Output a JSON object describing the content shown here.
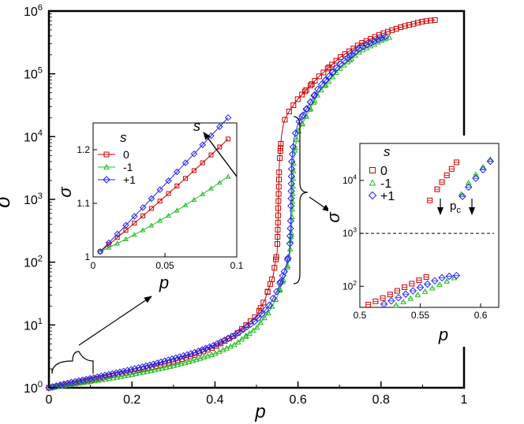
{
  "colors": {
    "s0": "#cc0000",
    "sm1": "#22bb22",
    "sp1": "#2222ee",
    "axis": "#000000"
  },
  "chart_data": [
    {
      "id": "main",
      "type": "scatter",
      "xlabel": "p",
      "ylabel": "σ",
      "yscale": "log",
      "xlim": [
        0,
        1
      ],
      "ylim": [
        1,
        1000000
      ],
      "xticks": [
        {
          "value": 0,
          "label": "0"
        },
        {
          "value": 0.2,
          "label": "0.2"
        },
        {
          "value": 0.4,
          "label": "0.4"
        },
        {
          "value": 0.6,
          "label": "0.6"
        },
        {
          "value": 0.8,
          "label": "0.8"
        },
        {
          "value": 1,
          "label": "1"
        }
      ],
      "yticks": [
        {
          "value": 1,
          "base": "10",
          "exp": "0"
        },
        {
          "value": 10,
          "base": "10",
          "exp": "1"
        },
        {
          "value": 100,
          "base": "10",
          "exp": "2"
        },
        {
          "value": 1000,
          "base": "10",
          "exp": "3"
        },
        {
          "value": 10000,
          "base": "10",
          "exp": "4"
        },
        {
          "value": 100000,
          "base": "10",
          "exp": "5"
        },
        {
          "value": 1000000,
          "base": "10",
          "exp": "6"
        }
      ],
      "series": [
        {
          "name": "0",
          "marker": "square",
          "x": [
            0.0,
            0.05,
            0.1,
            0.15,
            0.2,
            0.25,
            0.3,
            0.35,
            0.4,
            0.45,
            0.5,
            0.52,
            0.54,
            0.55,
            0.555,
            0.56,
            0.565,
            0.57,
            0.58,
            0.6,
            0.65,
            0.7,
            0.75,
            0.8,
            0.85,
            0.9,
            0.93
          ],
          "y": [
            1.0,
            1.15,
            1.33,
            1.55,
            1.8,
            2.15,
            2.6,
            3.3,
            4.5,
            7.0,
            14,
            25,
            60,
            150,
            3500,
            10000,
            16000,
            20000,
            26000,
            40000,
            90000,
            180000,
            300000,
            430000,
            560000,
            680000,
            720000
          ]
        },
        {
          "name": "-1",
          "marker": "triangle",
          "x": [
            0.0,
            0.05,
            0.1,
            0.15,
            0.2,
            0.25,
            0.3,
            0.35,
            0.4,
            0.45,
            0.5,
            0.53,
            0.55,
            0.57,
            0.58,
            0.585,
            0.59,
            0.6,
            0.65,
            0.7,
            0.75,
            0.8,
            0.82
          ],
          "y": [
            1.0,
            1.12,
            1.26,
            1.42,
            1.63,
            1.9,
            2.25,
            2.75,
            3.5,
            5.0,
            9.0,
            16,
            28,
            65,
            120,
            400,
            5000,
            12000,
            50000,
            120000,
            230000,
            340000,
            380000
          ]
        },
        {
          "name": "+1",
          "marker": "diamond",
          "x": [
            0.0,
            0.05,
            0.1,
            0.15,
            0.2,
            0.25,
            0.3,
            0.35,
            0.4,
            0.45,
            0.5,
            0.53,
            0.55,
            0.57,
            0.58,
            0.583,
            0.585,
            0.59,
            0.6,
            0.65,
            0.7,
            0.75,
            0.8,
            0.81
          ],
          "y": [
            1.0,
            1.2,
            1.4,
            1.65,
            1.95,
            2.35,
            2.9,
            3.6,
            4.8,
            7.0,
            12,
            20,
            35,
            80,
            150,
            600,
            4000,
            9000,
            16000,
            60000,
            140000,
            260000,
            370000,
            390000
          ]
        }
      ]
    },
    {
      "id": "inset_left",
      "type": "line",
      "xlabel": "p",
      "ylabel": "σ",
      "xlim": [
        0,
        0.1
      ],
      "ylim": [
        1,
        1.25
      ],
      "xticks": [
        {
          "value": 0,
          "label": "0"
        },
        {
          "value": 0.05,
          "label": "0.05"
        },
        {
          "value": 0.1,
          "label": "0.1"
        }
      ],
      "yticks": [
        {
          "value": 1,
          "label": "1"
        },
        {
          "value": 1.1,
          "label": "1.1"
        },
        {
          "value": 1.2,
          "label": "1.2"
        }
      ],
      "legend_title": "s",
      "annotation": "s",
      "series": [
        {
          "name": "0",
          "marker": "square",
          "x": [
            0.005,
            0.094
          ],
          "y": [
            1.01,
            1.22
          ],
          "curve": 0.015
        },
        {
          "name": "-1",
          "marker": "triangle",
          "x": [
            0.005,
            0.094
          ],
          "y": [
            1.01,
            1.15
          ],
          "curve": 0.03
        },
        {
          "name": "+1",
          "marker": "diamond",
          "x": [
            0.005,
            0.094
          ],
          "y": [
            1.01,
            1.26
          ],
          "curve": 0.005
        }
      ]
    },
    {
      "id": "inset_right",
      "type": "scatter",
      "xlabel": "p",
      "ylabel": "σ",
      "yscale": "log",
      "xlim": [
        0.5,
        0.615
      ],
      "ylim": [
        40,
        50000
      ],
      "xticks": [
        {
          "value": 0.5,
          "label": "0.5"
        },
        {
          "value": 0.55,
          "label": "0.55"
        },
        {
          "value": 0.6,
          "label": "0.6"
        }
      ],
      "yticks": [
        {
          "value": 100,
          "base": "10",
          "exp": "2"
        },
        {
          "value": 1000,
          "base": "10",
          "exp": "3"
        },
        {
          "value": 10000,
          "base": "10",
          "exp": "4"
        }
      ],
      "legend_title": "s",
      "threshold": 1000,
      "threshold_label": "p",
      "threshold_sub": "c",
      "series": [
        {
          "name": "0",
          "marker": "square",
          "x": [
            0.507,
            0.513,
            0.519,
            0.525,
            0.531,
            0.537,
            0.543,
            0.549,
            0.555,
            0.558,
            0.564,
            0.568,
            0.572,
            0.576,
            0.58
          ],
          "y": [
            45,
            52,
            60,
            70,
            82,
            96,
            112,
            130,
            150,
            4200,
            6800,
            9300,
            12500,
            16500,
            22000
          ]
        },
        {
          "name": "-1",
          "marker": "triangle",
          "x": [
            0.53,
            0.536,
            0.542,
            0.548,
            0.554,
            0.56,
            0.566,
            0.572,
            0.578,
            0.584,
            0.59,
            0.596,
            0.602,
            0.608
          ],
          "y": [
            44,
            51,
            59,
            69,
            80,
            93,
            108,
            125,
            145,
            5500,
            9000,
            13000,
            18000,
            25000
          ]
        },
        {
          "name": "+1",
          "marker": "diamond",
          "x": [
            0.52,
            0.526,
            0.532,
            0.538,
            0.544,
            0.55,
            0.556,
            0.562,
            0.568,
            0.574,
            0.58,
            0.585,
            0.59,
            0.596,
            0.602,
            0.608
          ],
          "y": [
            46,
            53,
            61,
            71,
            82,
            95,
            110,
            127,
            145,
            155,
            160,
            5000,
            7500,
            11000,
            16000,
            23000
          ]
        }
      ]
    }
  ]
}
